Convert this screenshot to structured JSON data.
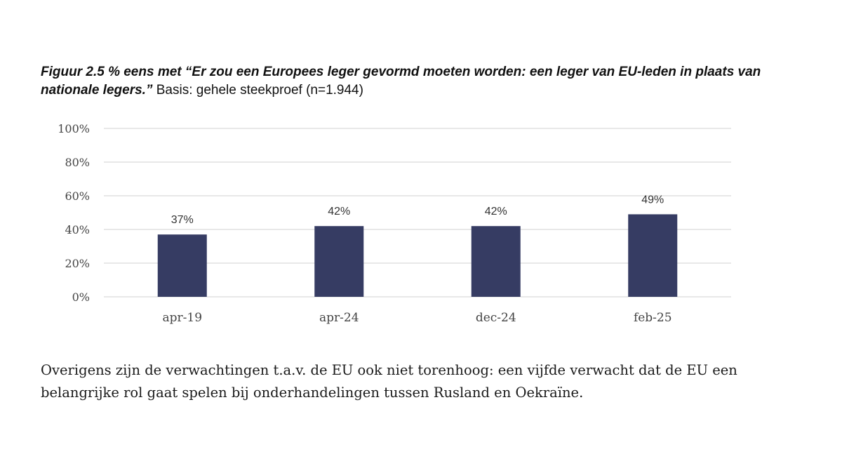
{
  "caption": {
    "title": "Figuur 2.5 % eens met “Er zou een Europees leger gevormd moeten worden: een leger van EU-leden in plaats van nationale legers.”",
    "basis": "Basis: gehele steekproef (n=1.944)"
  },
  "chart_data": {
    "type": "bar",
    "title": "Figuur 2.5 % eens met “Er zou een Europees leger gevormd moeten worden: een leger van EU-leden in plaats van nationale legers.”",
    "xlabel": "",
    "ylabel": "",
    "categories": [
      "apr-19",
      "apr-24",
      "dec-24",
      "feb-25"
    ],
    "values": [
      37,
      42,
      42,
      49
    ],
    "data_labels": [
      "37%",
      "42%",
      "42%",
      "49%"
    ],
    "ylim": [
      0,
      100
    ],
    "yticks": [
      0,
      20,
      40,
      60,
      80,
      100
    ],
    "ytick_labels": [
      "0%",
      "20%",
      "40%",
      "60%",
      "80%",
      "100%"
    ],
    "grid": true,
    "legend": "none",
    "bar_color": "#363C63",
    "grid_color": "#d9d9d9"
  },
  "body_text": "Overigens zijn de verwachtingen t.a.v. de EU ook niet torenhoog: een vijfde verwacht dat de EU een belangrijke rol gaat spelen bij onderhandelingen tussen Rusland en Oekraïne."
}
